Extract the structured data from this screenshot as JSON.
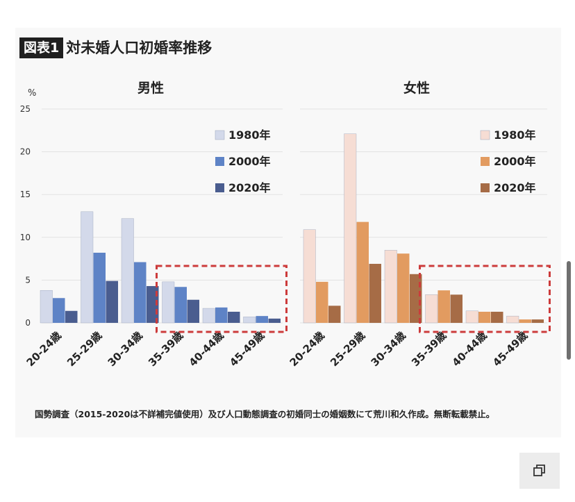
{
  "heading": {
    "badge": "図表1",
    "title": "対未婚人口初婚率推移"
  },
  "source_note": "国勢調査（2015-2020は不詳補完値使用）及び人口動態調査の初婚同士の婚姻数にて荒川和久作成。無断転載禁止。",
  "colors": {
    "male": [
      "#d3d9ea",
      "#5e83c6",
      "#4a5d8f"
    ],
    "female": [
      "#f6ddd4",
      "#e29b60",
      "#a66c46"
    ],
    "highlight": "#cc3b3b",
    "grid": "#e2e2e2"
  },
  "ui": {
    "copy_icon": "copy-icon"
  },
  "chart_data": [
    {
      "type": "bar",
      "title": "男性",
      "unit": "%",
      "ylim": [
        0,
        25
      ],
      "yticks": [
        0,
        5,
        10,
        15,
        20,
        25
      ],
      "grid": true,
      "legend_position": "top-right",
      "categories": [
        "20-24歳",
        "25-29歳",
        "30-34歳",
        "35-39歳",
        "40-44歳",
        "45-49歳"
      ],
      "series": [
        {
          "name": "1980年",
          "values": [
            3.8,
            13.0,
            12.2,
            4.8,
            1.7,
            0.7
          ]
        },
        {
          "name": "2000年",
          "values": [
            2.9,
            8.2,
            7.1,
            4.2,
            1.8,
            0.8
          ]
        },
        {
          "name": "2020年",
          "values": [
            1.4,
            4.9,
            4.3,
            2.7,
            1.3,
            0.5
          ]
        }
      ],
      "highlighted_categories": [
        "35-39歳",
        "40-44歳",
        "45-49歳"
      ]
    },
    {
      "type": "bar",
      "title": "女性",
      "ylim": [
        0,
        25
      ],
      "grid": true,
      "legend_position": "top-right",
      "categories": [
        "20-24歳",
        "25-29歳",
        "30-34歳",
        "35-39歳",
        "40-44歳",
        "45-49歳"
      ],
      "series": [
        {
          "name": "1980年",
          "values": [
            10.9,
            22.1,
            8.5,
            3.3,
            1.4,
            0.8
          ]
        },
        {
          "name": "2000年",
          "values": [
            4.8,
            11.8,
            8.1,
            3.8,
            1.3,
            0.4
          ]
        },
        {
          "name": "2020年",
          "values": [
            2.0,
            6.9,
            5.7,
            3.3,
            1.3,
            0.4
          ]
        }
      ],
      "highlighted_categories": [
        "35-39歳",
        "40-44歳",
        "45-49歳"
      ]
    }
  ]
}
